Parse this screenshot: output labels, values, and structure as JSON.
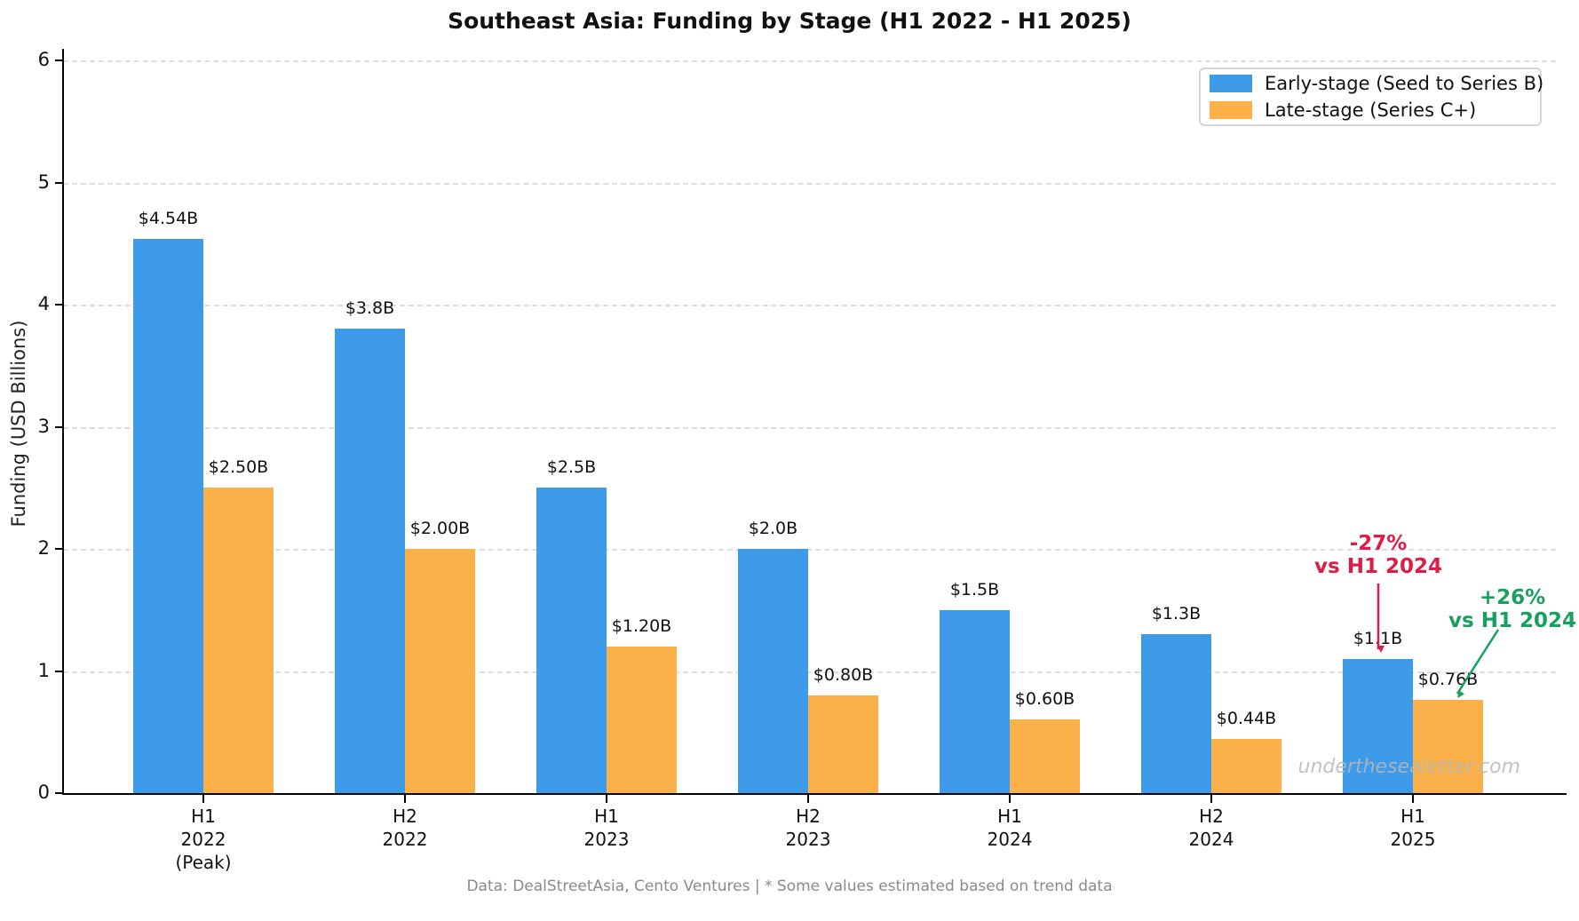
{
  "title": "Southeast Asia: Funding by Stage (H1 2022 - H1 2025)",
  "ylabel": "Funding (USD Billions)",
  "footer": "Data: DealStreetAsia, Cento Ventures | * Some values estimated based on trend data",
  "watermark": "underthesealetter.com",
  "colors": {
    "early_stage": "#3D9BE9",
    "late_stage": "#FBB14A",
    "negative": "#DC1E46",
    "positive": "#17A05E",
    "gridline": "#dedede",
    "footer_gray": "#8a8a8a",
    "watermark_gray": "#b8b8b8"
  },
  "legend": {
    "items": [
      {
        "label": "Early-stage (Seed to Series B)",
        "color_key": "early_stage"
      },
      {
        "label": "Late-stage (Series C+)",
        "color_key": "late_stage"
      }
    ]
  },
  "annotations": [
    {
      "id": "early-change",
      "lines": [
        "-27%",
        "vs H1 2024"
      ],
      "color_key": "negative"
    },
    {
      "id": "late-change",
      "lines": [
        "+26%",
        "vs H1 2024"
      ],
      "color_key": "positive"
    }
  ],
  "chart_data": {
    "type": "bar",
    "title": "Southeast Asia: Funding by Stage (H1 2022 - H1 2025)",
    "xlabel": "",
    "ylabel": "Funding (USD Billions)",
    "ylim": [
      0,
      6
    ],
    "yticks": [
      0,
      1,
      2,
      3,
      4,
      5,
      6
    ],
    "grid": "horizontal-dashed",
    "legend_position": "upper right",
    "categories": [
      "H1 2022 (Peak)",
      "H2 2022",
      "H1 2023",
      "H2 2023",
      "H1 2024",
      "H2 2024",
      "H1 2025"
    ],
    "category_lines": [
      [
        "H1",
        "2022",
        "(Peak)"
      ],
      [
        "H2",
        "2022"
      ],
      [
        "H1",
        "2023"
      ],
      [
        "H2",
        "2023"
      ],
      [
        "H1",
        "2024"
      ],
      [
        "H2",
        "2024"
      ],
      [
        "H1",
        "2025"
      ]
    ],
    "series": [
      {
        "name": "Early-stage (Seed to Series B)",
        "color_key": "early_stage",
        "values": [
          4.54,
          3.8,
          2.5,
          2.0,
          1.5,
          1.3,
          1.1
        ],
        "value_labels": [
          "$4.54B",
          "$3.8B",
          "$2.5B",
          "$2.0B",
          "$1.5B",
          "$1.3B",
          "$1.1B"
        ]
      },
      {
        "name": "Late-stage (Series C+)",
        "color_key": "late_stage",
        "values": [
          2.5,
          2.0,
          1.2,
          0.8,
          0.6,
          0.44,
          0.76
        ],
        "value_labels": [
          "$2.50B",
          "$2.00B",
          "$1.20B",
          "$0.80B",
          "$0.60B",
          "$0.44B",
          "$0.76B"
        ]
      }
    ]
  }
}
